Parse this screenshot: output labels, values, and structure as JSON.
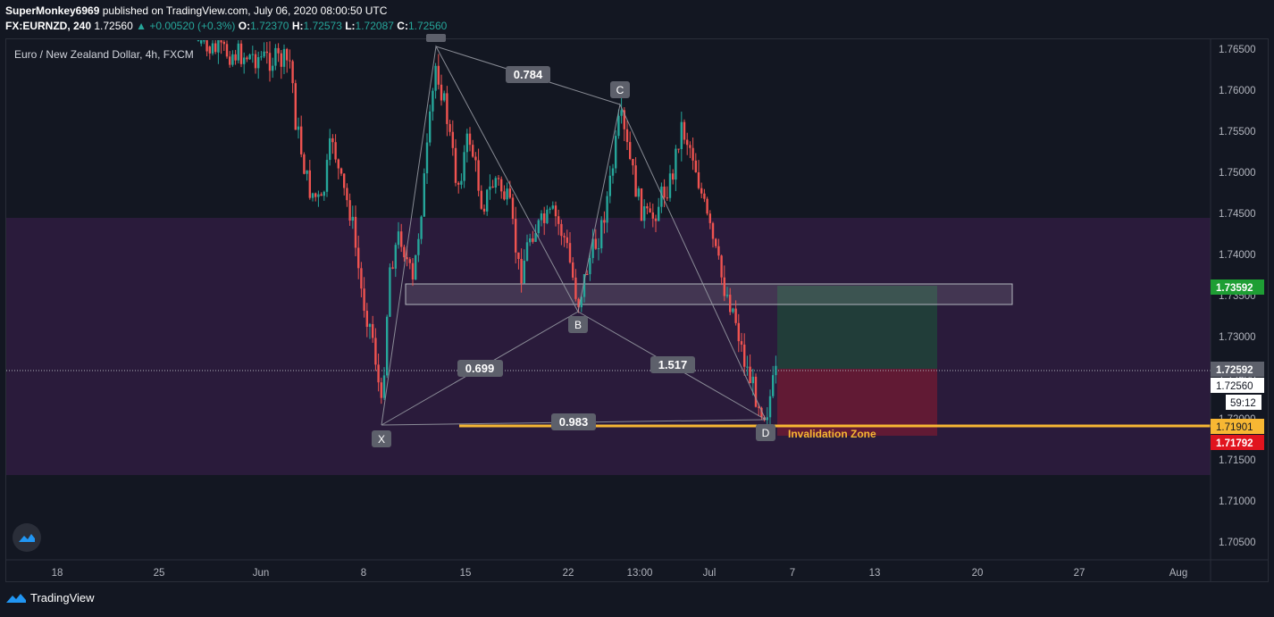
{
  "header": {
    "author": "SuperMonkey6969",
    "published_text": "published on TradingView.com, July 06, 2020 08:00:50 UTC",
    "symbol": "FX:EURNZD, 240",
    "last": "1.72560",
    "change": "▲ +0.00520 (+0.3%)",
    "open_label": "O:",
    "open": "1.72370",
    "high_label": "H:",
    "high": "1.72573",
    "low_label": "L:",
    "low": "1.72087",
    "close_label": "C:",
    "close": "1.72560"
  },
  "chart_title": "Euro / New Zealand Dollar, 4h, FXCM",
  "price_axis": [
    "1.76500",
    "1.76000",
    "1.75500",
    "1.75000",
    "1.74500",
    "1.74000",
    "1.73500",
    "1.73000",
    "1.72500",
    "1.72000",
    "1.71500",
    "1.71000",
    "1.70500"
  ],
  "time_axis": [
    "18",
    "25",
    "Jun",
    "8",
    "15",
    "22",
    "13:00",
    "Jul",
    "7",
    "13",
    "20",
    "27",
    "Aug"
  ],
  "price_tags": {
    "target": "1.73592",
    "current": "1.72592",
    "last": "1.72560",
    "countdown": "59:12",
    "entry": "1.71901",
    "stop": "1.71792"
  },
  "pattern": {
    "points": [
      "X",
      "B",
      "C",
      "D"
    ],
    "ratios": {
      "xb": "0.699",
      "ac": "0.784",
      "bd": "1.517",
      "xd": "0.983"
    }
  },
  "annotation": "Invalidation Zone",
  "footer": {
    "brand": "TradingView"
  },
  "colors": {
    "up": "#26a69a",
    "down": "#ef5350",
    "zone": "#2d1a3f",
    "target_tag": "#1e9e34",
    "stop_tag": "#e1141e",
    "entry_line": "#f7b733"
  },
  "icons": [
    "tradingview-logo-icon"
  ]
}
